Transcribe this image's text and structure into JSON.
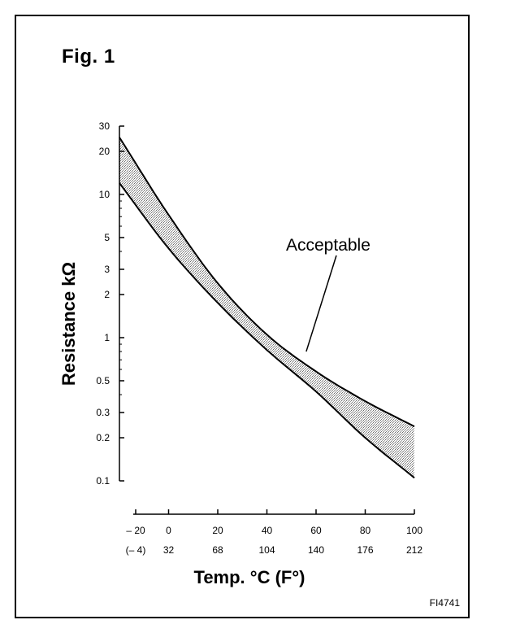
{
  "figure": {
    "title": "Fig. 1",
    "id_label": "FI4741"
  },
  "chart_data": {
    "type": "line",
    "title": "Fig. 1",
    "xlabel": "Temp. °C (F°)",
    "ylabel": "Resistance kΩ",
    "yscale": "log",
    "xlim": [
      -20,
      100
    ],
    "ylim": [
      0.1,
      30
    ],
    "x_ticks": [
      -20,
      0,
      20,
      40,
      60,
      80,
      100
    ],
    "x_tick_labels_c": [
      "– 20",
      "0",
      "20",
      "40",
      "60",
      "80",
      "100"
    ],
    "x_tick_labels_f": [
      "(– 4)",
      "32",
      "68",
      "104",
      "140",
      "176",
      "212"
    ],
    "y_ticks": [
      0.1,
      0.2,
      0.3,
      0.5,
      1,
      2,
      3,
      5,
      10,
      20,
      30
    ],
    "y_tick_labels": [
      "0.1",
      "0.2",
      "0.3",
      "0.5",
      "1",
      "2",
      "3",
      "5",
      "10",
      "20",
      "30"
    ],
    "series": [
      {
        "x": [
          -20,
          0,
          20,
          40,
          60,
          80,
          100
        ],
        "y": [
          25,
          7.2,
          2.4,
          1.05,
          0.58,
          0.36,
          0.24
        ]
      },
      {
        "x": [
          -20,
          0,
          20,
          40,
          60,
          80,
          100
        ],
        "y": [
          12,
          4.2,
          1.75,
          0.82,
          0.42,
          0.2,
          0.105
        ]
      }
    ],
    "band": {
      "label": "Acceptable",
      "between_series": [
        0,
        1
      ]
    },
    "annotations": [
      {
        "text": "Acceptable",
        "points_to": {
          "x": 56,
          "y": 0.8
        }
      }
    ],
    "grid": false,
    "colors": {
      "line": "#000000",
      "background": "#ffffff"
    }
  }
}
